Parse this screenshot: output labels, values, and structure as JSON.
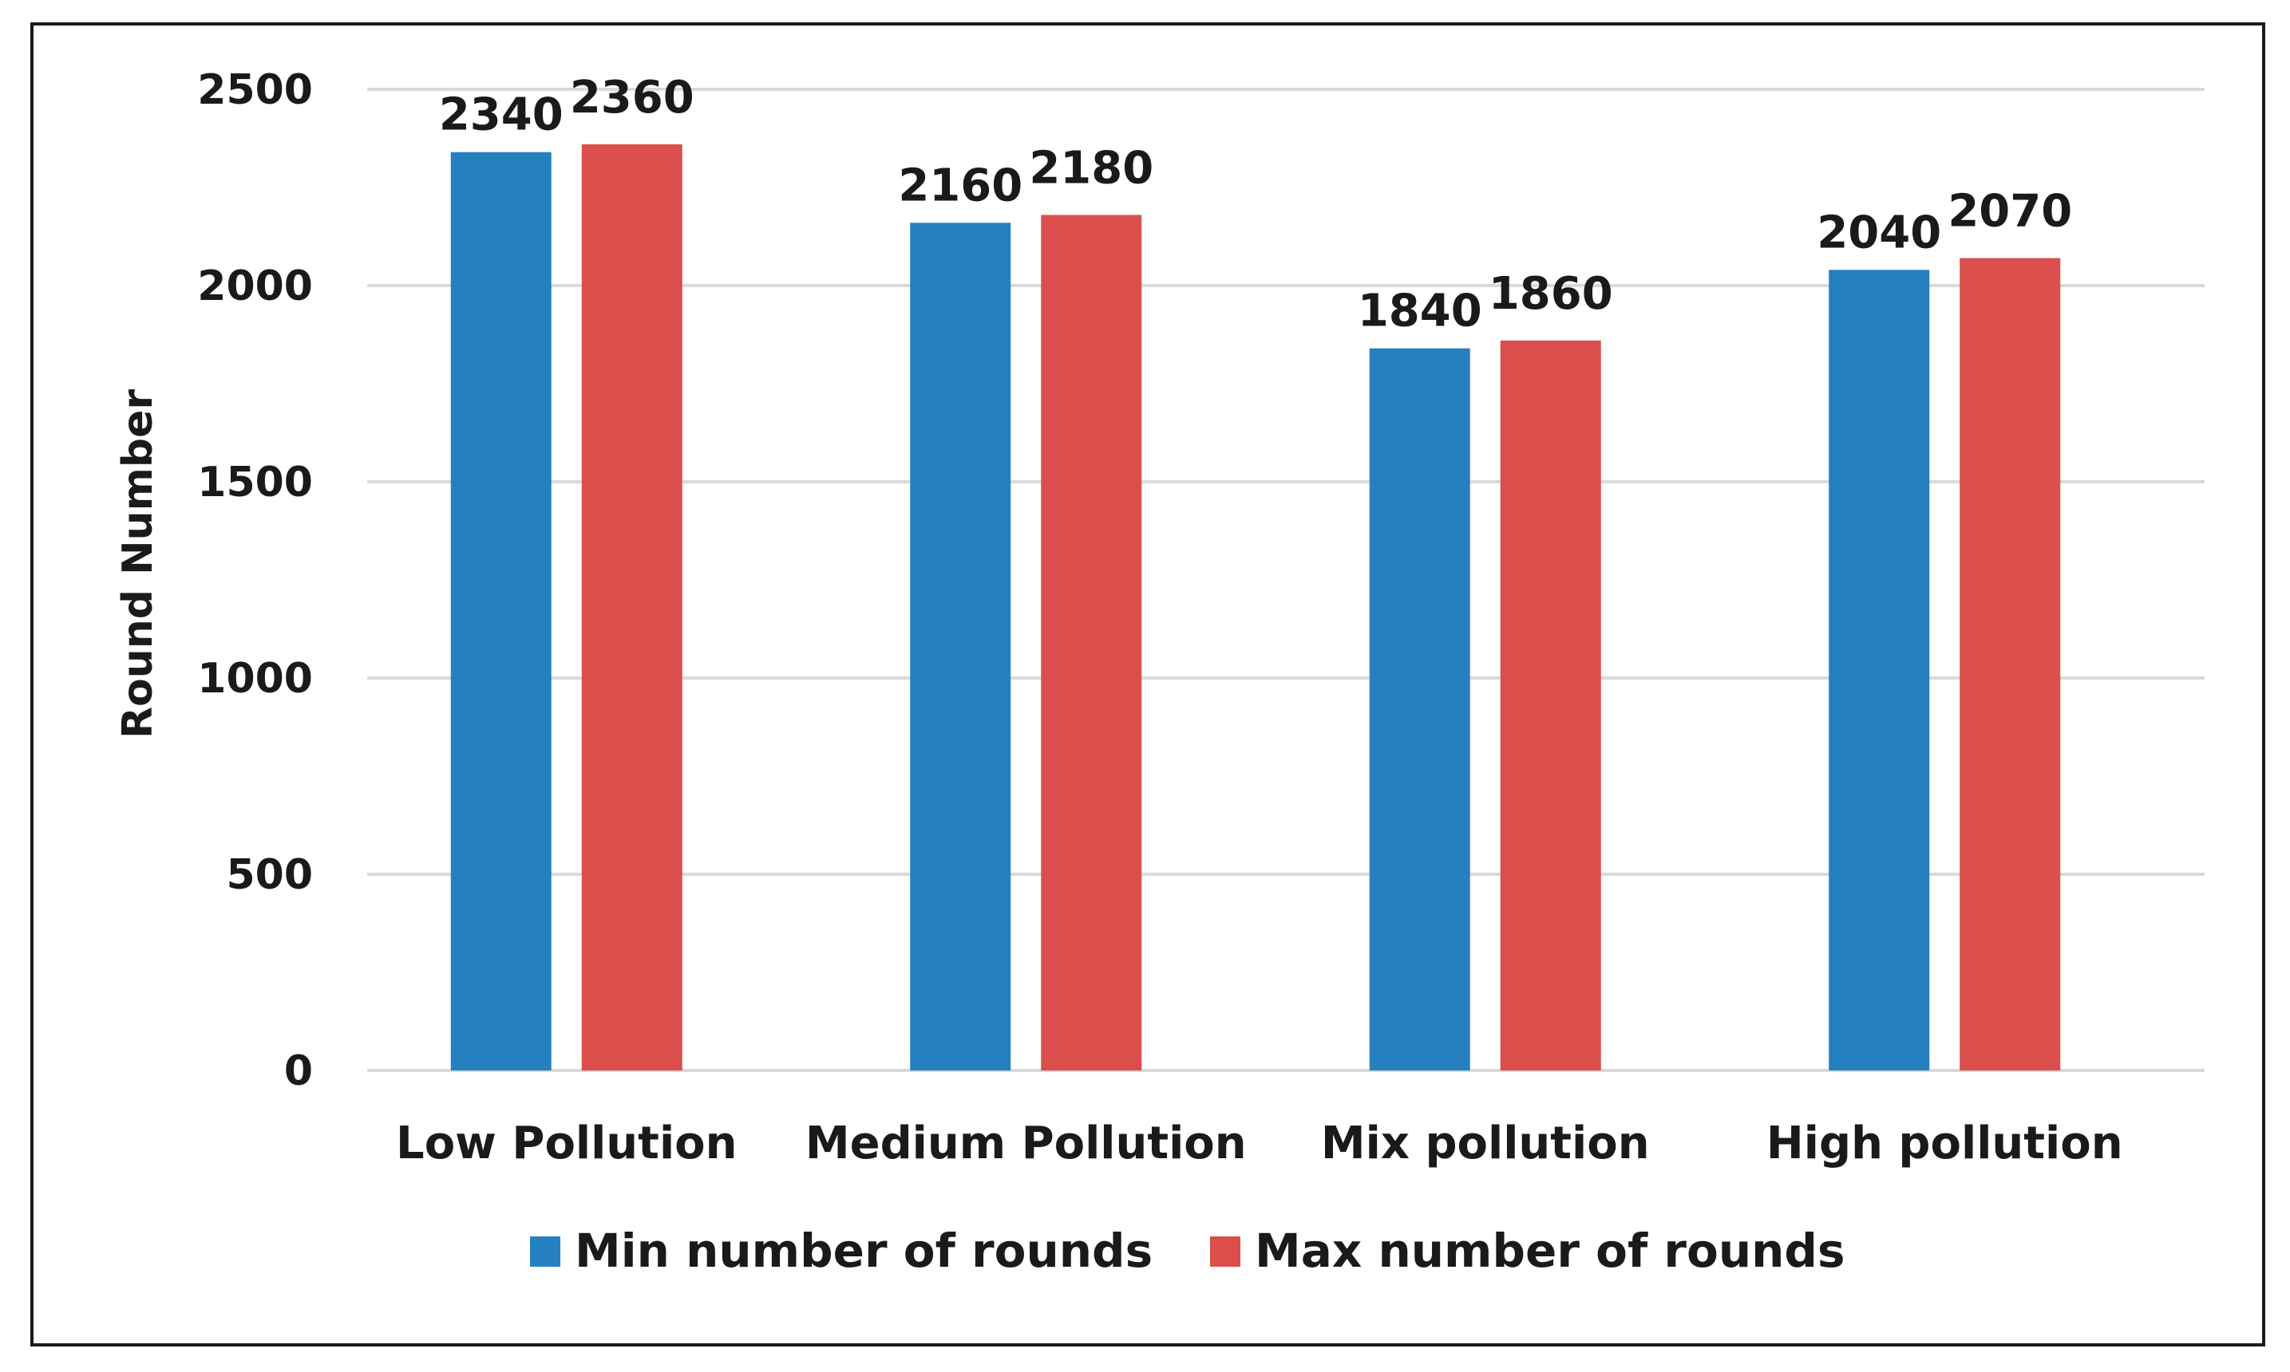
{
  "chart_data": {
    "type": "bar",
    "title": "",
    "xlabel": "",
    "ylabel": "Round Number",
    "ylim": [
      0,
      2500
    ],
    "yticks": [
      0,
      500,
      1000,
      1500,
      2000,
      2500
    ],
    "grid": true,
    "legend_position": "bottom",
    "categories": [
      "Low Pollution",
      "Medium Pollution",
      "Mix pollution",
      "High pollution"
    ],
    "series": [
      {
        "name": "Min number of rounds",
        "color": "#2580c0",
        "values": [
          2340,
          2160,
          1840,
          2040
        ]
      },
      {
        "name": "Max number of rounds",
        "color": "#da4f4b",
        "values": [
          2360,
          2180,
          1860,
          2070
        ]
      }
    ],
    "data_labels": true
  }
}
